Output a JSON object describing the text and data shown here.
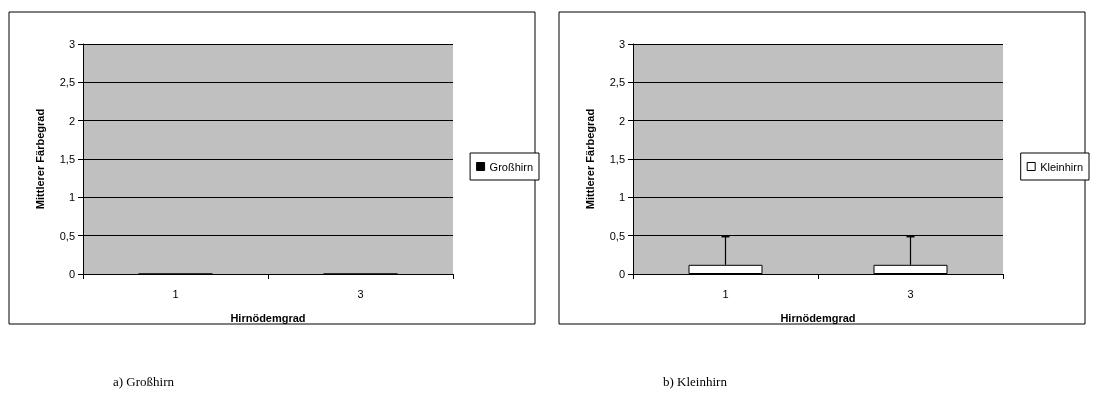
{
  "chart_data": [
    {
      "type": "bar",
      "title": "a) Großhirn",
      "xlabel": "Hirnödemgrad",
      "ylabel": "Mittlerer Färbegrad",
      "categories": [
        "1",
        "3"
      ],
      "series": [
        {
          "name": "Großhirn",
          "color": "#000000",
          "values": [
            0,
            0
          ]
        }
      ],
      "ylim": [
        0,
        3
      ],
      "yticks": [
        0,
        {
          "value": 0.5,
          "label": "0,5"
        },
        1,
        {
          "value": 1.5,
          "label": "1,5"
        },
        2,
        {
          "value": 2.5,
          "label": "2,5"
        },
        3
      ],
      "grid": "y",
      "legend": "right"
    },
    {
      "type": "bar",
      "title": "b) Kleinhirn",
      "xlabel": "Hirnödemgrad",
      "ylabel": "Mittlerer Färbegrad",
      "categories": [
        "1",
        "3"
      ],
      "series": [
        {
          "name": "Kleinhirn",
          "color": "#ffffff",
          "values": [
            0.12,
            0.12
          ],
          "errors": [
            [
              0.12,
              0.49
            ],
            [
              0.12,
              0.49
            ]
          ]
        }
      ],
      "ylim": [
        0,
        3
      ],
      "yticks": [
        0,
        {
          "value": 0.5,
          "label": "0,5"
        },
        1,
        {
          "value": 1.5,
          "label": "1,5"
        },
        2,
        {
          "value": 2.5,
          "label": "2,5"
        },
        3
      ],
      "grid": "y",
      "legend": "right"
    }
  ]
}
